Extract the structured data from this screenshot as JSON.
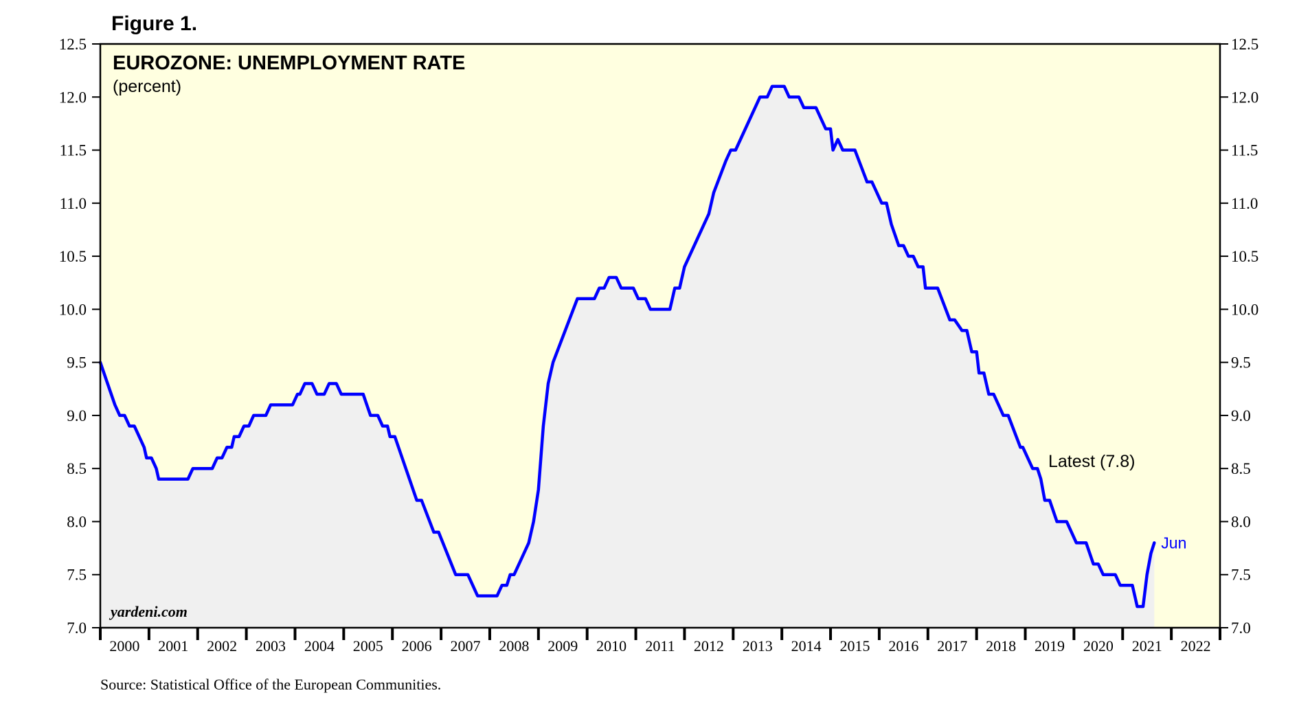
{
  "figure_label": "Figure 1.",
  "source": "Source: Statistical Office of the European Communities.",
  "watermark": "yardeni.com",
  "colors": {
    "plot_background": "#ffffe0",
    "area_fill": "#f0f0f0",
    "line": "#0000ff",
    "axis": "#000000",
    "latest_label": "#0000ff"
  },
  "chart_data": {
    "type": "line",
    "title": "EUROZONE: UNEMPLOYMENT RATE",
    "subtitle": "(percent)",
    "ylim": [
      7.0,
      12.5
    ],
    "y_ticks": [
      "7.0",
      "7.5",
      "8.0",
      "8.5",
      "9.0",
      "9.5",
      "10.0",
      "10.5",
      "11.0",
      "11.5",
      "12.0",
      "12.5"
    ],
    "xlim": [
      2000,
      2023
    ],
    "x_tick_labels": [
      "2000",
      "2001",
      "2002",
      "2003",
      "2004",
      "2005",
      "2006",
      "2007",
      "2008",
      "2009",
      "2010",
      "2011",
      "2012",
      "2013",
      "2014",
      "2015",
      "2016",
      "2017",
      "2018",
      "2019",
      "2020",
      "2021",
      "2022"
    ],
    "y_axes": "both",
    "grid": false,
    "annotation": "Latest (7.8)",
    "latest_label": "Jun",
    "series": [
      {
        "values": [
          [
            2000.0,
            9.5
          ],
          [
            2000.15,
            9.3
          ],
          [
            2000.3,
            9.1
          ],
          [
            2000.4,
            9.0
          ],
          [
            2000.5,
            9.0
          ],
          [
            2000.6,
            8.9
          ],
          [
            2000.7,
            8.9
          ],
          [
            2000.8,
            8.8
          ],
          [
            2000.9,
            8.7
          ],
          [
            2000.95,
            8.6
          ],
          [
            2001.05,
            8.6
          ],
          [
            2001.15,
            8.5
          ],
          [
            2001.2,
            8.4
          ],
          [
            2001.8,
            8.4
          ],
          [
            2001.9,
            8.5
          ],
          [
            2002.3,
            8.5
          ],
          [
            2002.4,
            8.6
          ],
          [
            2002.5,
            8.6
          ],
          [
            2002.6,
            8.7
          ],
          [
            2002.7,
            8.7
          ],
          [
            2002.75,
            8.8
          ],
          [
            2002.85,
            8.8
          ],
          [
            2002.95,
            8.9
          ],
          [
            2003.05,
            8.9
          ],
          [
            2003.15,
            9.0
          ],
          [
            2003.4,
            9.0
          ],
          [
            2003.5,
            9.1
          ],
          [
            2003.95,
            9.1
          ],
          [
            2004.05,
            9.2
          ],
          [
            2004.1,
            9.2
          ],
          [
            2004.2,
            9.3
          ],
          [
            2004.35,
            9.3
          ],
          [
            2004.45,
            9.2
          ],
          [
            2004.6,
            9.2
          ],
          [
            2004.7,
            9.3
          ],
          [
            2004.85,
            9.3
          ],
          [
            2004.95,
            9.2
          ],
          [
            2005.4,
            9.2
          ],
          [
            2005.55,
            9.0
          ],
          [
            2005.7,
            9.0
          ],
          [
            2005.8,
            8.9
          ],
          [
            2005.9,
            8.9
          ],
          [
            2005.95,
            8.8
          ],
          [
            2006.05,
            8.8
          ],
          [
            2006.5,
            8.2
          ],
          [
            2006.6,
            8.2
          ],
          [
            2006.85,
            7.9
          ],
          [
            2006.95,
            7.9
          ],
          [
            2007.3,
            7.5
          ],
          [
            2007.55,
            7.5
          ],
          [
            2007.75,
            7.3
          ],
          [
            2008.15,
            7.3
          ],
          [
            2008.25,
            7.4
          ],
          [
            2008.35,
            7.4
          ],
          [
            2008.42,
            7.5
          ],
          [
            2008.5,
            7.5
          ],
          [
            2008.6,
            7.6
          ],
          [
            2008.8,
            7.8
          ],
          [
            2008.9,
            8.0
          ],
          [
            2009.0,
            8.3
          ],
          [
            2009.1,
            8.9
          ],
          [
            2009.2,
            9.3
          ],
          [
            2009.3,
            9.5
          ],
          [
            2009.8,
            10.1
          ],
          [
            2010.15,
            10.1
          ],
          [
            2010.25,
            10.2
          ],
          [
            2010.35,
            10.2
          ],
          [
            2010.45,
            10.3
          ],
          [
            2010.6,
            10.3
          ],
          [
            2010.7,
            10.2
          ],
          [
            2010.95,
            10.2
          ],
          [
            2011.05,
            10.1
          ],
          [
            2011.2,
            10.1
          ],
          [
            2011.3,
            10.0
          ],
          [
            2011.7,
            10.0
          ],
          [
            2011.8,
            10.2
          ],
          [
            2011.9,
            10.2
          ],
          [
            2012.0,
            10.4
          ],
          [
            2012.1,
            10.5
          ],
          [
            2012.4,
            10.8
          ],
          [
            2012.5,
            10.9
          ],
          [
            2012.6,
            11.1
          ],
          [
            2012.85,
            11.4
          ],
          [
            2012.95,
            11.5
          ],
          [
            2013.05,
            11.5
          ],
          [
            2013.55,
            12.0
          ],
          [
            2013.7,
            12.0
          ],
          [
            2013.8,
            12.1
          ],
          [
            2014.05,
            12.1
          ],
          [
            2014.15,
            12.0
          ],
          [
            2014.35,
            12.0
          ],
          [
            2014.45,
            11.9
          ],
          [
            2014.7,
            11.9
          ],
          [
            2014.8,
            11.8
          ],
          [
            2014.9,
            11.7
          ],
          [
            2015.0,
            11.7
          ],
          [
            2015.05,
            11.5
          ],
          [
            2015.15,
            11.6
          ],
          [
            2015.25,
            11.5
          ],
          [
            2015.5,
            11.5
          ],
          [
            2015.75,
            11.2
          ],
          [
            2015.85,
            11.2
          ],
          [
            2016.05,
            11.0
          ],
          [
            2016.15,
            11.0
          ],
          [
            2016.25,
            10.8
          ],
          [
            2016.4,
            10.6
          ],
          [
            2016.5,
            10.6
          ],
          [
            2016.6,
            10.5
          ],
          [
            2016.7,
            10.5
          ],
          [
            2016.8,
            10.4
          ],
          [
            2016.9,
            10.4
          ],
          [
            2016.95,
            10.2
          ],
          [
            2017.2,
            10.2
          ],
          [
            2017.45,
            9.9
          ],
          [
            2017.55,
            9.9
          ],
          [
            2017.7,
            9.8
          ],
          [
            2017.8,
            9.8
          ],
          [
            2017.9,
            9.6
          ],
          [
            2018.0,
            9.6
          ],
          [
            2018.05,
            9.4
          ],
          [
            2018.15,
            9.4
          ],
          [
            2018.25,
            9.2
          ],
          [
            2018.35,
            9.2
          ],
          [
            2018.55,
            9.0
          ],
          [
            2018.65,
            9.0
          ],
          [
            2018.9,
            8.7
          ],
          [
            2018.95,
            8.7
          ],
          [
            2019.15,
            8.5
          ],
          [
            2019.25,
            8.5
          ],
          [
            2019.32,
            8.4
          ],
          [
            2019.4,
            8.2
          ],
          [
            2019.5,
            8.2
          ],
          [
            2019.65,
            8.0
          ],
          [
            2019.85,
            8.0
          ],
          [
            2020.05,
            7.8
          ],
          [
            2020.25,
            7.8
          ],
          [
            2020.4,
            7.6
          ],
          [
            2020.5,
            7.6
          ],
          [
            2020.6,
            7.5
          ],
          [
            2020.85,
            7.5
          ],
          [
            2020.95,
            7.4
          ],
          [
            2021.2,
            7.4
          ],
          [
            2021.3,
            7.2
          ],
          [
            2021.42,
            7.2
          ],
          [
            2021.5,
            7.5
          ],
          [
            2021.58,
            7.7
          ],
          [
            2021.65,
            7.8
          ]
        ]
      }
    ]
  }
}
